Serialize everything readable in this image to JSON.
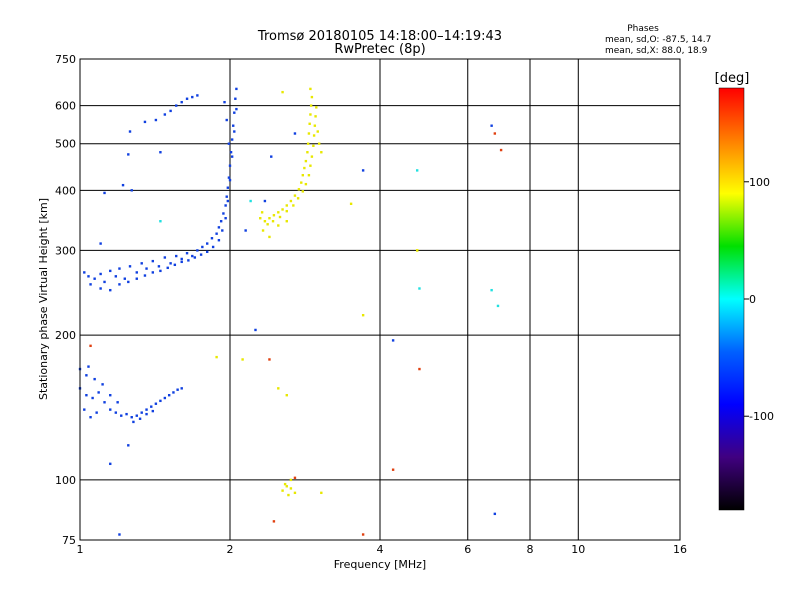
{
  "header": {
    "title": "Tromsø 20180105 14:18:00–14:19:43",
    "subtitle": "RwPretec (8p)"
  },
  "phases_note": {
    "heading": "Phases",
    "line1": "mean, sd,O: -87.5, 14.7",
    "line2": "mean, sd,X: 88.0, 18.9"
  },
  "chart_data": {
    "type": "scatter",
    "xlabel": "Frequency [MHz]",
    "ylabel": "Stationary phase Virtual Height [km]",
    "xscale": "log",
    "yscale": "log",
    "xlim": [
      1,
      16
    ],
    "ylim": [
      75,
      750
    ],
    "xticks": [
      1,
      2,
      4,
      6,
      8,
      10,
      16
    ],
    "xtick_labels": [
      "1",
      "2",
      "4",
      "6",
      "8",
      "10",
      "16"
    ],
    "yticks": [
      75,
      100,
      200,
      300,
      400,
      500,
      600,
      750
    ],
    "ytick_labels": [
      "75",
      "100",
      "200",
      "300",
      "400",
      "500",
      "600",
      "750"
    ],
    "grid": true,
    "colorbar": {
      "label": "[deg]",
      "range": [
        -180,
        180
      ],
      "ticks": [
        100,
        0,
        -100
      ],
      "tick_labels": [
        "100",
        "0",
        "-100"
      ],
      "colors": [
        "#ff0000",
        "#ff8000",
        "#ffff00",
        "#00e000",
        "#00ffff",
        "#0060ff",
        "#0000ff",
        "#400080",
        "#000000"
      ]
    },
    "series": [
      {
        "description_color": "#1040e0",
        "points": [
          [
            1.02,
            270
          ],
          [
            1.04,
            265
          ],
          [
            1.07,
            262
          ],
          [
            1.1,
            268
          ],
          [
            1.12,
            258
          ],
          [
            1.15,
            272
          ],
          [
            1.18,
            265
          ],
          [
            1.2,
            275
          ],
          [
            1.23,
            262
          ],
          [
            1.26,
            278
          ],
          [
            1.3,
            270
          ],
          [
            1.33,
            282
          ],
          [
            1.36,
            275
          ],
          [
            1.4,
            285
          ],
          [
            1.44,
            278
          ],
          [
            1.48,
            290
          ],
          [
            1.52,
            282
          ],
          [
            1.56,
            292
          ],
          [
            1.6,
            288
          ],
          [
            1.64,
            296
          ],
          [
            1.68,
            292
          ],
          [
            1.72,
            300
          ],
          [
            1.76,
            305
          ],
          [
            1.8,
            310
          ],
          [
            1.84,
            318
          ],
          [
            1.88,
            325
          ],
          [
            1.9,
            335
          ],
          [
            1.92,
            345
          ],
          [
            1.94,
            358
          ],
          [
            1.96,
            372
          ],
          [
            1.97,
            388
          ],
          [
            1.98,
            405
          ],
          [
            1.99,
            425
          ],
          [
            2.0,
            450
          ],
          [
            2.01,
            480
          ],
          [
            2.02,
            510
          ],
          [
            2.03,
            545
          ],
          [
            2.04,
            580
          ],
          [
            2.05,
            620
          ],
          [
            2.06,
            650
          ],
          [
            1.05,
            255
          ],
          [
            1.1,
            250
          ],
          [
            1.15,
            248
          ],
          [
            1.2,
            255
          ],
          [
            1.25,
            258
          ],
          [
            1.3,
            262
          ],
          [
            1.35,
            266
          ],
          [
            1.4,
            270
          ],
          [
            1.45,
            272
          ],
          [
            1.5,
            276
          ],
          [
            1.55,
            280
          ],
          [
            1.6,
            284
          ],
          [
            1.65,
            286
          ],
          [
            1.7,
            290
          ],
          [
            1.75,
            294
          ],
          [
            1.8,
            298
          ],
          [
            1.85,
            305
          ],
          [
            1.9,
            315
          ],
          [
            1.93,
            330
          ],
          [
            1.96,
            350
          ],
          [
            1.98,
            380
          ],
          [
            2.0,
            420
          ],
          [
            2.02,
            470
          ],
          [
            2.04,
            530
          ],
          [
            2.06,
            590
          ],
          [
            1.95,
            610
          ],
          [
            1.97,
            560
          ],
          [
            1.99,
            500
          ],
          [
            1.26,
            530
          ],
          [
            1.35,
            555
          ],
          [
            1.42,
            560
          ],
          [
            1.48,
            575
          ],
          [
            1.52,
            585
          ],
          [
            1.56,
            600
          ],
          [
            1.6,
            610
          ],
          [
            1.64,
            620
          ],
          [
            1.68,
            625
          ],
          [
            1.72,
            630
          ],
          [
            1.25,
            475
          ],
          [
            1.45,
            480
          ],
          [
            1.22,
            410
          ],
          [
            1.27,
            400
          ],
          [
            1.12,
            395
          ],
          [
            1.1,
            310
          ],
          [
            1.0,
            155
          ],
          [
            1.03,
            150
          ],
          [
            1.06,
            148
          ],
          [
            1.09,
            152
          ],
          [
            1.12,
            145
          ],
          [
            1.15,
            140
          ],
          [
            1.18,
            138
          ],
          [
            1.21,
            136
          ],
          [
            1.24,
            137
          ],
          [
            1.27,
            135
          ],
          [
            1.3,
            136
          ],
          [
            1.33,
            138
          ],
          [
            1.36,
            140
          ],
          [
            1.39,
            142
          ],
          [
            1.42,
            144
          ],
          [
            1.45,
            146
          ],
          [
            1.48,
            148
          ],
          [
            1.51,
            150
          ],
          [
            1.54,
            152
          ],
          [
            1.57,
            154
          ],
          [
            1.6,
            155
          ],
          [
            1.03,
            165
          ],
          [
            1.07,
            162
          ],
          [
            1.11,
            158
          ],
          [
            1.15,
            150
          ],
          [
            1.19,
            145
          ],
          [
            1.02,
            140
          ],
          [
            1.05,
            135
          ],
          [
            1.08,
            138
          ],
          [
            1.28,
            132
          ],
          [
            1.32,
            134
          ],
          [
            1.36,
            137
          ],
          [
            1.4,
            139
          ],
          [
            1.0,
            170
          ],
          [
            1.04,
            172
          ],
          [
            1.25,
            118
          ],
          [
            1.15,
            108
          ],
          [
            1.2,
            77
          ],
          [
            2.42,
            470
          ],
          [
            2.35,
            380
          ],
          [
            2.7,
            525
          ],
          [
            2.25,
            205
          ],
          [
            4.25,
            195
          ],
          [
            6.7,
            545
          ],
          [
            6.8,
            85
          ],
          [
            3.7,
            440
          ],
          [
            2.15,
            330
          ]
        ]
      },
      {
        "description_color": "#e8e800",
        "points": [
          [
            2.3,
            350
          ],
          [
            2.35,
            345
          ],
          [
            2.4,
            350
          ],
          [
            2.45,
            355
          ],
          [
            2.5,
            360
          ],
          [
            2.55,
            365
          ],
          [
            2.6,
            372
          ],
          [
            2.65,
            380
          ],
          [
            2.7,
            390
          ],
          [
            2.75,
            402
          ],
          [
            2.78,
            415
          ],
          [
            2.8,
            430
          ],
          [
            2.82,
            445
          ],
          [
            2.84,
            460
          ],
          [
            2.86,
            480
          ],
          [
            2.87,
            500
          ],
          [
            2.88,
            525
          ],
          [
            2.89,
            550
          ],
          [
            2.9,
            575
          ],
          [
            2.91,
            600
          ],
          [
            2.92,
            625
          ],
          [
            2.9,
            650
          ],
          [
            2.32,
            360
          ],
          [
            2.38,
            340
          ],
          [
            2.44,
            345
          ],
          [
            2.52,
            352
          ],
          [
            2.6,
            362
          ],
          [
            2.68,
            372
          ],
          [
            2.74,
            385
          ],
          [
            2.8,
            398
          ],
          [
            2.84,
            412
          ],
          [
            2.88,
            430
          ],
          [
            2.9,
            450
          ],
          [
            2.92,
            470
          ],
          [
            2.94,
            495
          ],
          [
            2.95,
            520
          ],
          [
            2.96,
            545
          ],
          [
            2.97,
            570
          ],
          [
            2.98,
            595
          ],
          [
            3.0,
            530
          ],
          [
            3.02,
            500
          ],
          [
            3.05,
            480
          ],
          [
            2.33,
            330
          ],
          [
            2.4,
            320
          ],
          [
            2.5,
            338
          ],
          [
            2.6,
            345
          ],
          [
            2.55,
            95
          ],
          [
            2.6,
            97
          ],
          [
            2.62,
            93
          ],
          [
            2.58,
            98
          ],
          [
            2.65,
            96
          ],
          [
            2.7,
            94
          ],
          [
            3.05,
            94
          ],
          [
            2.5,
            155
          ],
          [
            2.6,
            150
          ],
          [
            1.88,
            180
          ],
          [
            2.12,
            178
          ],
          [
            2.55,
            640
          ],
          [
            3.5,
            375
          ],
          [
            3.7,
            220
          ],
          [
            4.75,
            300
          ],
          [
            2.65,
            100
          ],
          [
            4.75,
            300
          ]
        ]
      },
      {
        "description_color": "#20e0e0",
        "points": [
          [
            4.75,
            440
          ],
          [
            4.8,
            250
          ],
          [
            6.7,
            248
          ],
          [
            6.9,
            230
          ],
          [
            1.45,
            345
          ],
          [
            2.2,
            380
          ]
        ]
      },
      {
        "description_color": "#e04010",
        "points": [
          [
            1.05,
            190
          ],
          [
            2.4,
            178
          ],
          [
            4.8,
            170
          ],
          [
            4.25,
            105
          ],
          [
            3.7,
            77
          ],
          [
            2.7,
            101
          ],
          [
            7.0,
            485
          ],
          [
            6.8,
            525
          ],
          [
            2.45,
            82
          ]
        ]
      }
    ]
  }
}
